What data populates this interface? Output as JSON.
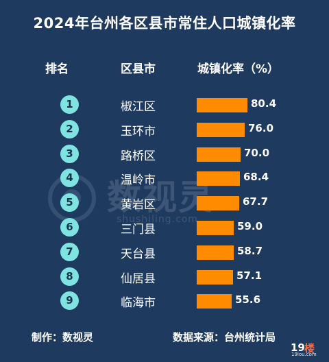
{
  "title": "2024年台州各区县市常住人口城镇化率",
  "headers": {
    "rank": "排名",
    "district": "区县市",
    "rate": "城镇化率（%）"
  },
  "chart_data": {
    "type": "bar",
    "orientation": "horizontal",
    "title": "2024年台州各区县市常住人口城镇化率",
    "xlabel": "城镇化率（%）",
    "ylabel": "区县市",
    "categories": [
      "椒江区",
      "玉环市",
      "路桥区",
      "温岭市",
      "黄岩区",
      "三门县",
      "天台县",
      "仙居县",
      "临海市"
    ],
    "ranks": [
      "1",
      "2",
      "3",
      "4",
      "5",
      "6",
      "7",
      "8",
      "9"
    ],
    "values": [
      80.4,
      76.0,
      70.0,
      68.4,
      67.7,
      59.0,
      58.7,
      57.1,
      55.6
    ],
    "value_labels": [
      "80.4",
      "76.0",
      "70.0",
      "68.4",
      "67.7",
      "59.0",
      "58.7",
      "57.1",
      "55.6"
    ],
    "bar_color": "#ff8c00",
    "rank_badge_color": "#7fe3e0",
    "grid": false
  },
  "footer": {
    "left": "制作：数视灵",
    "right": "数据来源：台州统计局"
  },
  "watermark": {
    "text": "数视灵",
    "sub": "shushiling.com"
  },
  "badge": {
    "num": "19",
    "char": "楼",
    "url": "19lou.com"
  },
  "colors": {
    "background": "#1f3a5f",
    "text": "#ffffff"
  }
}
